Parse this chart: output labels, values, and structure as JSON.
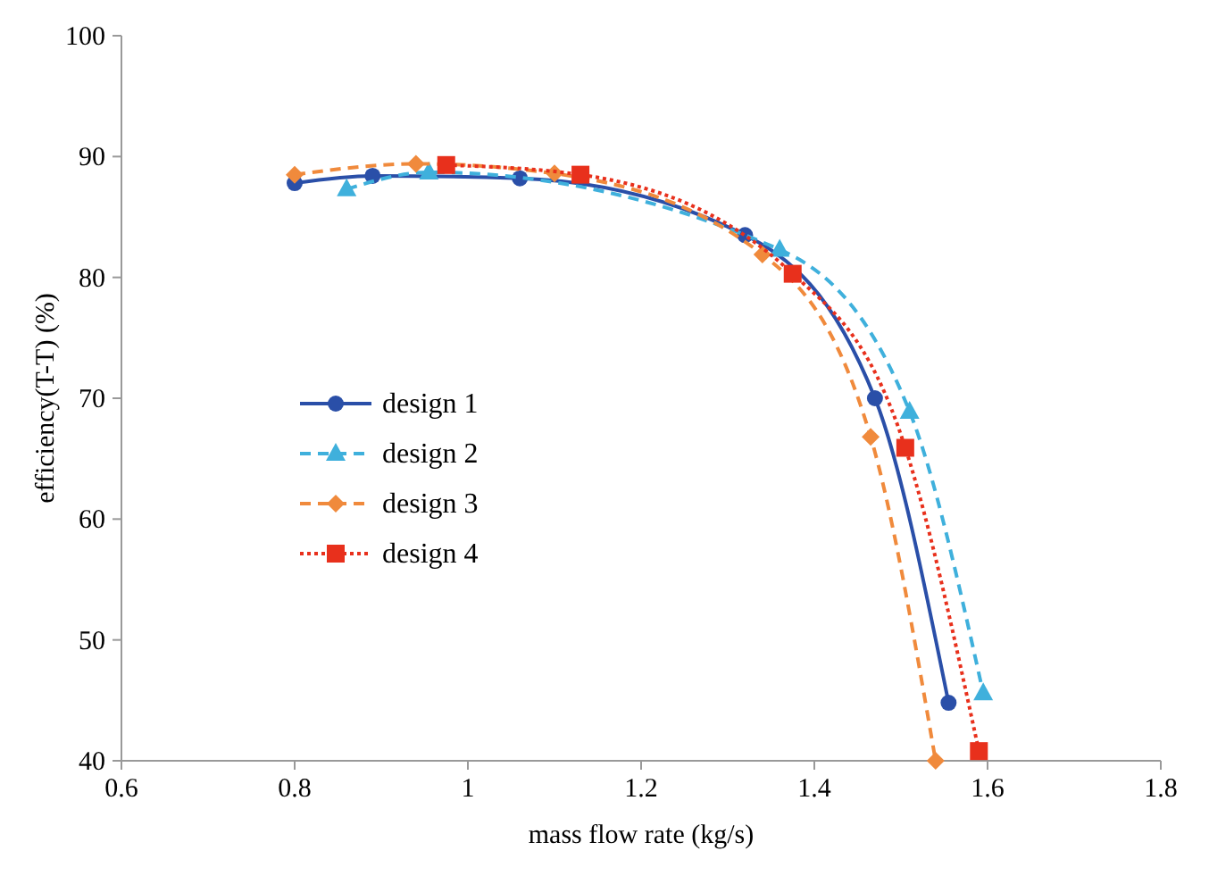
{
  "chart_data": {
    "type": "line",
    "xlabel": "mass flow rate (kg/s)",
    "ylabel": "efficiency(T-T) (%)",
    "xlim": [
      0.6,
      1.8
    ],
    "xticks": [
      0.6,
      0.8,
      1,
      1.2,
      1.4,
      1.6,
      1.8
    ],
    "ylim": [
      40,
      100
    ],
    "yticks": [
      40,
      50,
      60,
      70,
      80,
      90,
      100
    ],
    "grid": false,
    "legend": "bottom left",
    "series": [
      {
        "name": "design 1",
        "color": "#2a4fa8",
        "marker": "circle",
        "line_style": "solid",
        "x": [
          0.8,
          0.89,
          1.06,
          1.32,
          1.47,
          1.555
        ],
        "values": [
          87.8,
          88.4,
          88.2,
          83.5,
          70,
          44.8
        ]
      },
      {
        "name": "design 2",
        "color": "#3fb0dc",
        "marker": "triangle",
        "line_style": "dashed",
        "x": [
          0.86,
          0.955,
          1.36,
          1.51,
          1.595
        ],
        "values": [
          87.3,
          88.7,
          82.3,
          68.9,
          45.6
        ]
      },
      {
        "name": "design 3",
        "color": "#f08a3c",
        "marker": "diamond",
        "line_style": "dashed",
        "x": [
          0.8,
          0.94,
          1.1,
          1.34,
          1.465,
          1.54
        ],
        "values": [
          88.5,
          89.4,
          88.6,
          81.9,
          66.8,
          40
        ]
      },
      {
        "name": "design 4",
        "color": "#e8301c",
        "marker": "square",
        "line_style": "dotted",
        "x": [
          0.975,
          1.13,
          1.375,
          1.505,
          1.59
        ],
        "values": [
          89.3,
          88.5,
          80.3,
          65.9,
          40.8
        ]
      }
    ]
  }
}
